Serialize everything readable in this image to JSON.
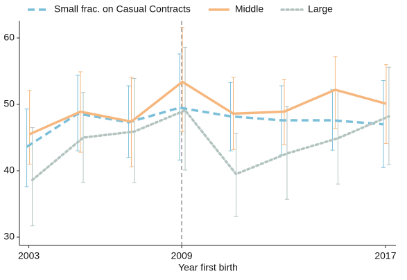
{
  "chart_data": {
    "type": "line",
    "x_label": "Year first birth",
    "x": [
      2003,
      2005,
      2007,
      2009,
      2011,
      2013,
      2015,
      2017
    ],
    "xlim": [
      2002.63,
      2017.41
    ],
    "xticks": [
      2003,
      2009,
      2017
    ],
    "ylim": [
      28.75,
      62.6
    ],
    "yticks": [
      30,
      40,
      50,
      60
    ],
    "vline": 2009,
    "legend": "top",
    "series": [
      {
        "name": "Small frac. on Casual Contracts",
        "color": "#7bbfd9",
        "dash": "dashed",
        "values": [
          43.6,
          48.6,
          47.3,
          49.5,
          48.2,
          47.6,
          47.6,
          47.0
        ],
        "ci_low": [
          37.6,
          43.0,
          42.0,
          41.6,
          43.0,
          42.4,
          43.1,
          40.5
        ],
        "ci_high": [
          49.3,
          54.4,
          52.8,
          57.6,
          53.3,
          52.8,
          52.2,
          53.6
        ]
      },
      {
        "name": "Middle",
        "color": "#f6b77f",
        "dash": "solid",
        "values": [
          45.5,
          48.9,
          47.4,
          53.4,
          48.6,
          48.9,
          52.2,
          50.1
        ],
        "ci_low": [
          41.0,
          42.8,
          40.6,
          45.9,
          43.2,
          43.9,
          46.4,
          44.1
        ],
        "ci_high": [
          52.1,
          54.9,
          54.1,
          61.6,
          54.1,
          53.8,
          57.2,
          56.0
        ]
      },
      {
        "name": "Large",
        "color": "#b3c4c0",
        "dash": "dotted",
        "values": [
          38.6,
          45.0,
          45.9,
          49.1,
          39.5,
          42.6,
          44.9,
          48.2
        ],
        "ci_low": [
          31.7,
          38.2,
          38.2,
          40.1,
          33.1,
          35.7,
          38.0,
          40.9
        ],
        "ci_high": [
          46.5,
          51.8,
          53.9,
          58.6,
          45.6,
          49.7,
          52.1,
          55.6
        ]
      }
    ]
  }
}
